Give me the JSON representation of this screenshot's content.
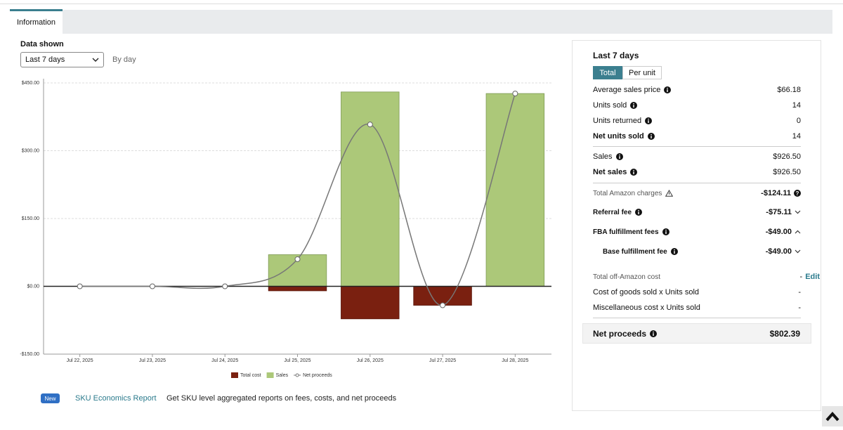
{
  "tab": "Information",
  "controls": {
    "label": "Data shown",
    "range": "Last 7 days",
    "granularity": "By day"
  },
  "chart_data": {
    "type": "bar",
    "categories": [
      "Jul 22, 2025",
      "Jul 23, 2025",
      "Jul 24, 2025",
      "Jul 25, 2025",
      "Jul 26, 2025",
      "Jul 27, 2025",
      "Jul 28, 2025"
    ],
    "series": [
      {
        "name": "Total cost",
        "color": "#7a2010",
        "values": [
          0,
          0,
          0,
          -10,
          -72,
          -42,
          0
        ]
      },
      {
        "name": "Sales",
        "color": "#acc879",
        "values": [
          0,
          0,
          0,
          70,
          430,
          0,
          426.5
        ]
      },
      {
        "name": "Net proceeds",
        "type": "line",
        "color": "#777777",
        "values": [
          0,
          0,
          0,
          60,
          358,
          -42,
          426.5
        ]
      }
    ],
    "ylim": [
      -150,
      450
    ],
    "yticks": [
      {
        "value": -150,
        "label": "-$150.00"
      },
      {
        "value": 0,
        "label": "$0.00"
      },
      {
        "value": 150,
        "label": "$150.00"
      },
      {
        "value": 300,
        "label": "$300.00"
      },
      {
        "value": 450,
        "label": "$450.00"
      }
    ],
    "grid": true,
    "legend": "bottom"
  },
  "summary": {
    "title": "Last 7 days",
    "views": [
      "Total",
      "Per unit"
    ],
    "rows": [
      {
        "label": "Average sales price",
        "value": "$66.18"
      },
      {
        "label": "Units sold",
        "value": "14"
      },
      {
        "label": "Units returned",
        "value": "0"
      },
      {
        "label": "Net units sold",
        "value": "14"
      },
      {
        "label": "Sales",
        "value": "$926.50"
      },
      {
        "label": "Net sales",
        "value": "$926.50"
      },
      {
        "label": "Total Amazon charges",
        "value": "-$124.11"
      },
      {
        "label": "Referral fee",
        "value": "-$75.11"
      },
      {
        "label": "FBA fulfillment fees",
        "value": "-$49.00"
      },
      {
        "label": "Base fulfillment fee",
        "value": "-$49.00"
      },
      {
        "label": "Total off-Amazon cost",
        "value": "-",
        "action": "Edit"
      },
      {
        "label": "Cost of goods sold x Units sold",
        "value": "-"
      },
      {
        "label": "Miscellaneous cost x Units sold",
        "value": "-"
      }
    ],
    "net": {
      "label": "Net proceeds",
      "value": "$802.39"
    }
  },
  "footer": {
    "badge": "New",
    "link": "SKU Economics Report",
    "text": "Get SKU level aggregated reports on fees, costs, and net proceeds"
  }
}
